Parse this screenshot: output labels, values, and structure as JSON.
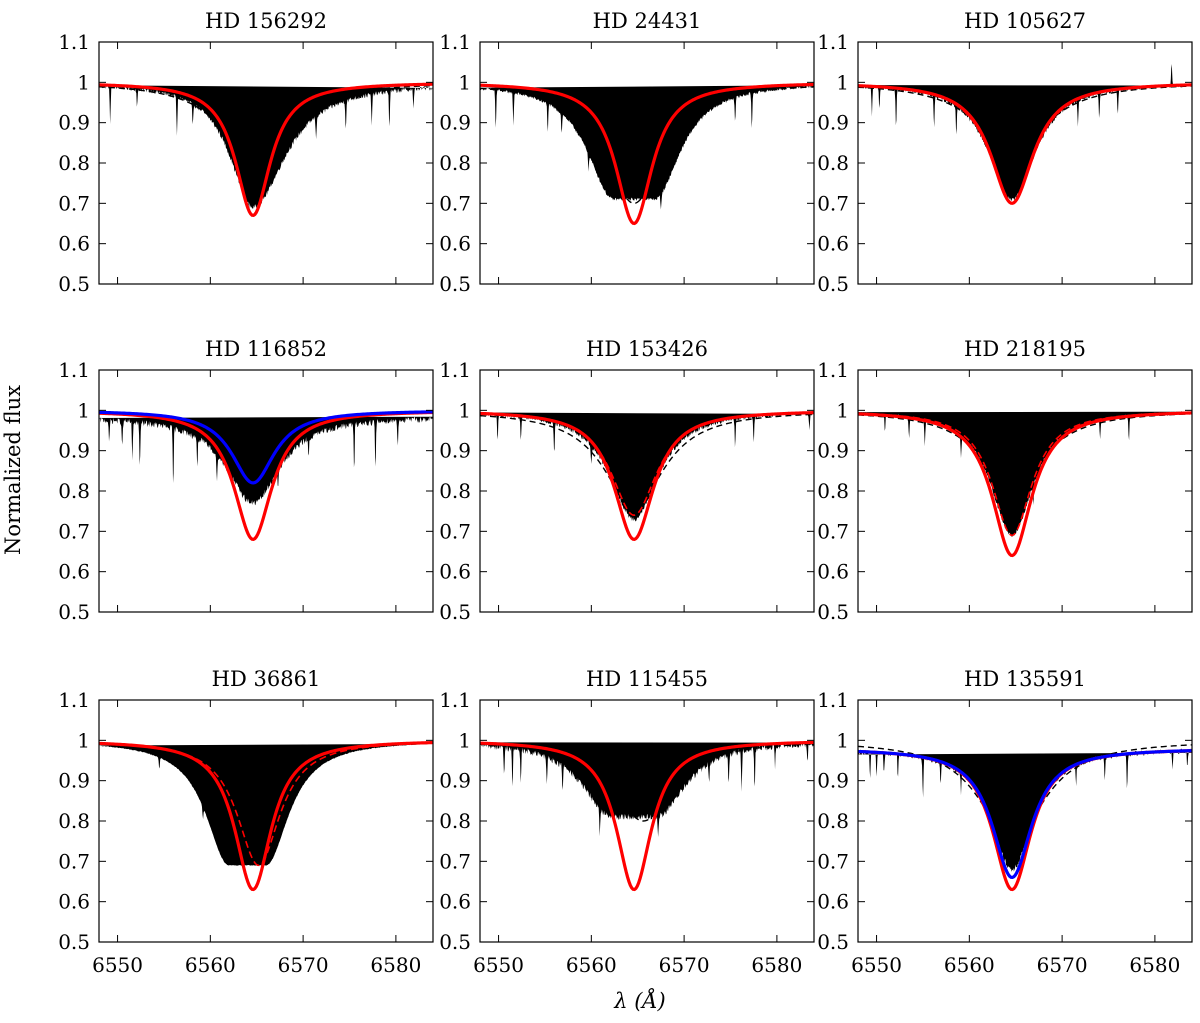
{
  "figure": {
    "ylabel": "Normalized flux",
    "xlabel": "λ (Å)"
  },
  "chart_data": [
    {
      "type": "line",
      "title": "HD 156292",
      "xlim": [
        6548,
        6584
      ],
      "ylim": [
        0.5,
        1.1
      ],
      "xticks": [
        "6550",
        "6560",
        "6570",
        "6580"
      ],
      "yticks": [
        "0.5",
        "0.6",
        "0.7",
        "0.8",
        "0.9",
        "1",
        "1.1"
      ],
      "center": 6564.6,
      "series": [
        {
          "name": "observed",
          "kind": "observed",
          "min": 0.69,
          "width": 3.0,
          "shape_width": 1.0,
          "red_wing": 0.04,
          "noise": 0.006,
          "lines": [
            [
              6549.2,
              0.09
            ],
            [
              6552.1,
              0.05
            ],
            [
              6556.4,
              0.1
            ],
            [
              6558.1,
              0.06
            ],
            [
              6571.4,
              0.06
            ],
            [
              6574.6,
              0.07
            ],
            [
              6577.4,
              0.08
            ],
            [
              6579.3,
              0.09
            ],
            [
              6581.9,
              0.05
            ]
          ]
        },
        {
          "name": "model (dashed)",
          "kind": "dash-black",
          "min": 0.8,
          "width": 4.0
        },
        {
          "name": "model (red)",
          "kind": "red-line",
          "min": 0.67,
          "width": 2.3
        }
      ]
    },
    {
      "type": "line",
      "title": "HD 24431",
      "xlim": [
        6548,
        6584
      ],
      "ylim": [
        0.5,
        1.1
      ],
      "xticks": [
        "6550",
        "6560",
        "6570",
        "6580"
      ],
      "yticks": [
        "0.5",
        "0.6",
        "0.7",
        "0.8",
        "0.9",
        "1",
        "1.1"
      ],
      "center": 6564.6,
      "series": [
        {
          "name": "observed",
          "kind": "observed",
          "min": 0.71,
          "width": 3.4,
          "flat": 2.2,
          "noise": 0.004,
          "lines": [
            [
              6549.7,
              0.1
            ],
            [
              6551.6,
              0.08
            ],
            [
              6555.3,
              0.07
            ],
            [
              6556.8,
              0.05
            ],
            [
              6559.7,
              0.04
            ],
            [
              6567.5,
              0.04
            ],
            [
              6575.5,
              0.06
            ],
            [
              6577.3,
              0.09
            ]
          ]
        },
        {
          "name": "model (dashed)",
          "kind": "dash-black",
          "min": 0.7,
          "width": 3.8
        },
        {
          "name": "model (red)",
          "kind": "red-line",
          "min": 0.65,
          "width": 2.4
        }
      ]
    },
    {
      "type": "line",
      "title": "HD 105627",
      "xlim": [
        6548,
        6584
      ],
      "ylim": [
        0.5,
        1.1
      ],
      "xticks": [
        "6550",
        "6560",
        "6570",
        "6580"
      ],
      "yticks": [
        "0.5",
        "0.6",
        "0.7",
        "0.8",
        "0.9",
        "1",
        "1.1"
      ],
      "center": 6564.6,
      "series": [
        {
          "name": "observed",
          "kind": "observed",
          "min": 0.71,
          "width": 3.1,
          "noise": 0.005,
          "lines": [
            [
              6549.5,
              0.07
            ],
            [
              6550.3,
              0.06
            ],
            [
              6552.1,
              0.1
            ],
            [
              6556.2,
              0.08
            ],
            [
              6558.6,
              0.07
            ],
            [
              6571.7,
              0.06
            ],
            [
              6574.0,
              0.07
            ],
            [
              6576.0,
              0.06
            ],
            [
              6581.8,
              -0.06
            ]
          ]
        },
        {
          "name": "model (dashed)",
          "kind": "dash-black",
          "min": 0.83,
          "width": 4.6
        },
        {
          "name": "model (red dashed)",
          "kind": "dash-red",
          "min": 0.7,
          "width": 2.9
        },
        {
          "name": "model (red)",
          "kind": "red-line",
          "min": 0.7,
          "width": 2.8
        }
      ]
    },
    {
      "type": "line",
      "title": "HD 116852",
      "xlim": [
        6548,
        6584
      ],
      "ylim": [
        0.5,
        1.1
      ],
      "xticks": [
        "6550",
        "6560",
        "6570",
        "6580"
      ],
      "yticks": [
        "0.5",
        "0.6",
        "0.7",
        "0.8",
        "0.9",
        "1",
        "1.1"
      ],
      "center": 6564.6,
      "series": [
        {
          "name": "observed",
          "kind": "observed",
          "min": 0.77,
          "width": 3.5,
          "continuum": 0.985,
          "noise": 0.008,
          "lines": [
            [
              6549.1,
              0.06
            ],
            [
              6550.5,
              0.07
            ],
            [
              6551.6,
              0.1
            ],
            [
              6552.4,
              0.12
            ],
            [
              6556.0,
              0.15
            ],
            [
              6558.6,
              0.07
            ],
            [
              6560.7,
              0.07
            ],
            [
              6567.3,
              0.05
            ],
            [
              6570.6,
              0.05
            ],
            [
              6575.5,
              0.12
            ],
            [
              6577.8,
              0.12
            ],
            [
              6580.2,
              0.06
            ]
          ]
        },
        {
          "name": "model (red)",
          "kind": "red-line",
          "min": 0.68,
          "width": 2.5
        },
        {
          "name": "model (blue)",
          "kind": "blue-line",
          "min": 0.82,
          "width": 2.8
        }
      ]
    },
    {
      "type": "line",
      "title": "HD 153426",
      "xlim": [
        6548,
        6584
      ],
      "ylim": [
        0.5,
        1.1
      ],
      "xticks": [
        "6550",
        "6560",
        "6570",
        "6580"
      ],
      "yticks": [
        "0.5",
        "0.6",
        "0.7",
        "0.8",
        "0.9",
        "1",
        "1.1"
      ],
      "center": 6564.6,
      "series": [
        {
          "name": "observed",
          "kind": "observed",
          "min": 0.73,
          "width": 3.2,
          "noise": 0.006,
          "lines": [
            [
              6549.9,
              0.07
            ],
            [
              6552.4,
              0.06
            ],
            [
              6556.0,
              0.08
            ],
            [
              6560.0,
              0.05
            ],
            [
              6575.5,
              0.07
            ],
            [
              6577.5,
              0.07
            ],
            [
              6583.5,
              0.04
            ]
          ]
        },
        {
          "name": "model (dashed)",
          "kind": "dash-black",
          "min": 0.76,
          "width": 4.0
        },
        {
          "name": "model (red dashed)",
          "kind": "dash-red",
          "min": 0.74,
          "width": 3.0
        },
        {
          "name": "model (red)",
          "kind": "red-line",
          "min": 0.68,
          "width": 2.6
        }
      ]
    },
    {
      "type": "line",
      "title": "HD 218195",
      "xlim": [
        6548,
        6584
      ],
      "ylim": [
        0.5,
        1.1
      ],
      "xticks": [
        "6550",
        "6560",
        "6570",
        "6580"
      ],
      "yticks": [
        "0.5",
        "0.6",
        "0.7",
        "0.8",
        "0.9",
        "1",
        "1.1"
      ],
      "center": 6564.6,
      "series": [
        {
          "name": "observed",
          "kind": "observed",
          "min": 0.69,
          "width": 2.8,
          "noise": 0.005,
          "lines": [
            [
              6550.9,
              0.04
            ],
            [
              6553.5,
              0.05
            ],
            [
              6555.2,
              0.06
            ],
            [
              6559.1,
              0.05
            ],
            [
              6566.9,
              0.05
            ],
            [
              6574.1,
              0.05
            ],
            [
              6577.2,
              0.06
            ]
          ]
        },
        {
          "name": "model (dashed)",
          "kind": "dash-black",
          "min": 0.81,
          "width": 4.2
        },
        {
          "name": "model (red dashed)",
          "kind": "dash-red",
          "min": 0.69,
          "width": 2.6
        },
        {
          "name": "model (red)",
          "kind": "red-line",
          "min": 0.64,
          "width": 2.6
        }
      ]
    },
    {
      "type": "line",
      "title": "HD 36861",
      "xlim": [
        6548,
        6584
      ],
      "ylim": [
        0.5,
        1.1
      ],
      "xticks": [
        "6550",
        "6560",
        "6570",
        "6580"
      ],
      "yticks": [
        "0.5",
        "0.6",
        "0.7",
        "0.8",
        "0.9",
        "1",
        "1.1"
      ],
      "center": 6564.6,
      "series": [
        {
          "name": "observed",
          "kind": "observed",
          "min": 0.69,
          "width": 3.0,
          "flat": 2.0,
          "center_shift": -0.6,
          "noise": 0.001,
          "lines": [
            [
              6554.5,
              0.03
            ],
            [
              6559.2,
              0.03
            ]
          ]
        },
        {
          "name": "model (dashed)",
          "kind": "dash-black",
          "min": 0.82,
          "width": 3.8,
          "center_shift": 1.0
        },
        {
          "name": "model (red dashed)",
          "kind": "dash-red",
          "min": 0.69,
          "width": 2.8,
          "center_shift": 0.6
        },
        {
          "name": "model (red)",
          "kind": "red-line",
          "min": 0.63,
          "width": 2.4
        }
      ]
    },
    {
      "type": "line",
      "title": "HD 115455",
      "xlim": [
        6548,
        6584
      ],
      "ylim": [
        0.5,
        1.1
      ],
      "xticks": [
        "6550",
        "6560",
        "6570",
        "6580"
      ],
      "yticks": [
        "0.5",
        "0.6",
        "0.7",
        "0.8",
        "0.9",
        "1",
        "1.1"
      ],
      "center": 6564.6,
      "series": [
        {
          "name": "observed",
          "kind": "observed",
          "min": 0.81,
          "width": 3.8,
          "flat": 2.4,
          "noise": 0.008,
          "lines": [
            [
              6550.6,
              0.07
            ],
            [
              6551.5,
              0.1
            ],
            [
              6552.4,
              0.08
            ],
            [
              6555.2,
              0.07
            ],
            [
              6556.9,
              0.06
            ],
            [
              6560.9,
              0.06
            ],
            [
              6567.2,
              0.05
            ],
            [
              6572.7,
              0.05
            ],
            [
              6574.8,
              0.07
            ],
            [
              6576.2,
              0.1
            ],
            [
              6577.6,
              0.1
            ],
            [
              6579.8,
              0.05
            ],
            [
              6583.3,
              0.05
            ]
          ]
        },
        {
          "name": "model (dashed)",
          "kind": "dash-black",
          "min": 0.8,
          "width": 4.0,
          "center_shift": 1.0
        },
        {
          "name": "model (red)",
          "kind": "red-line",
          "min": 0.63,
          "width": 2.3
        }
      ]
    },
    {
      "type": "line",
      "title": "HD 135591",
      "xlim": [
        6548,
        6584
      ],
      "ylim": [
        0.5,
        1.1
      ],
      "xticks": [
        "6550",
        "6560",
        "6570",
        "6580"
      ],
      "yticks": [
        "0.5",
        "0.6",
        "0.7",
        "0.8",
        "0.9",
        "1",
        "1.1"
      ],
      "center": 6564.6,
      "series": [
        {
          "name": "observed",
          "kind": "observed",
          "min": 0.68,
          "width": 2.8,
          "continuum": 0.98,
          "noise": 0.007,
          "lines": [
            [
              6549.3,
              0.07
            ],
            [
              6550.0,
              0.06
            ],
            [
              6550.8,
              0.05
            ],
            [
              6552.3,
              0.06
            ],
            [
              6555.0,
              0.1
            ],
            [
              6556.9,
              0.06
            ],
            [
              6559.1,
              0.05
            ],
            [
              6571.5,
              0.05
            ],
            [
              6574.6,
              0.06
            ],
            [
              6577.0,
              0.09
            ],
            [
              6581.9,
              0.05
            ],
            [
              6583.5,
              0.04
            ]
          ]
        },
        {
          "name": "model (dashed)",
          "kind": "dash-black",
          "min": 0.75,
          "width": 4.2
        },
        {
          "name": "model (red)",
          "kind": "red-line",
          "min": 0.63,
          "width": 2.5,
          "continuum": 0.98
        },
        {
          "name": "model (blue)",
          "kind": "blue-line",
          "min": 0.66,
          "width": 2.6,
          "continuum": 0.98
        }
      ]
    }
  ]
}
